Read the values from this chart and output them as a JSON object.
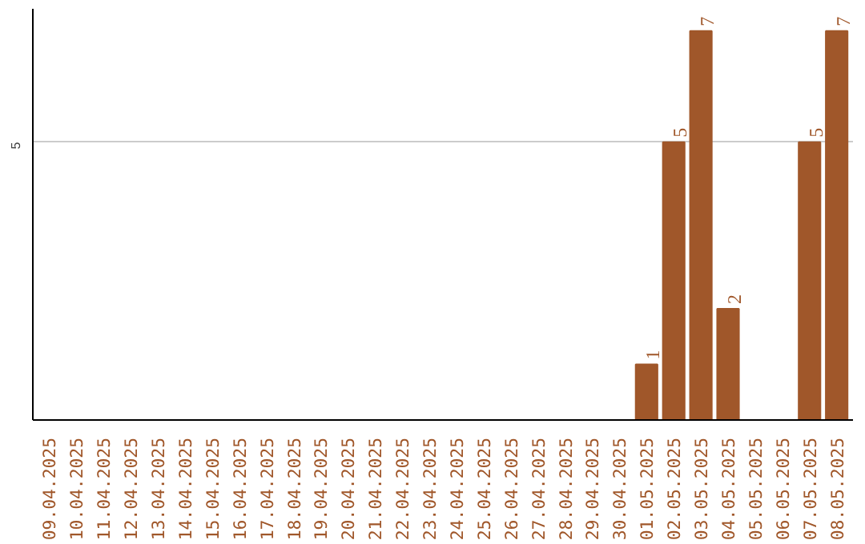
{
  "chart_data": {
    "type": "bar",
    "categories": [
      "09.04.2025",
      "10.04.2025",
      "11.04.2025",
      "12.04.2025",
      "13.04.2025",
      "14.04.2025",
      "15.04.2025",
      "16.04.2025",
      "17.04.2025",
      "18.04.2025",
      "19.04.2025",
      "20.04.2025",
      "21.04.2025",
      "22.04.2025",
      "23.04.2025",
      "24.04.2025",
      "25.04.2025",
      "26.04.2025",
      "27.04.2025",
      "28.04.2025",
      "29.04.2025",
      "30.04.2025",
      "01.05.2025",
      "02.05.2025",
      "03.05.2025",
      "04.05.2025",
      "05.05.2025",
      "06.05.2025",
      "07.05.2025",
      "08.05.2025"
    ],
    "values": [
      null,
      null,
      null,
      null,
      null,
      null,
      null,
      null,
      null,
      null,
      null,
      null,
      null,
      null,
      null,
      null,
      null,
      null,
      null,
      null,
      null,
      null,
      1,
      5,
      7,
      2,
      null,
      null,
      5,
      7
    ],
    "data_labels": true,
    "color": "#a0572a",
    "ylim": [
      0,
      7.4
    ],
    "yticks": [
      5
    ],
    "grid": "y"
  }
}
